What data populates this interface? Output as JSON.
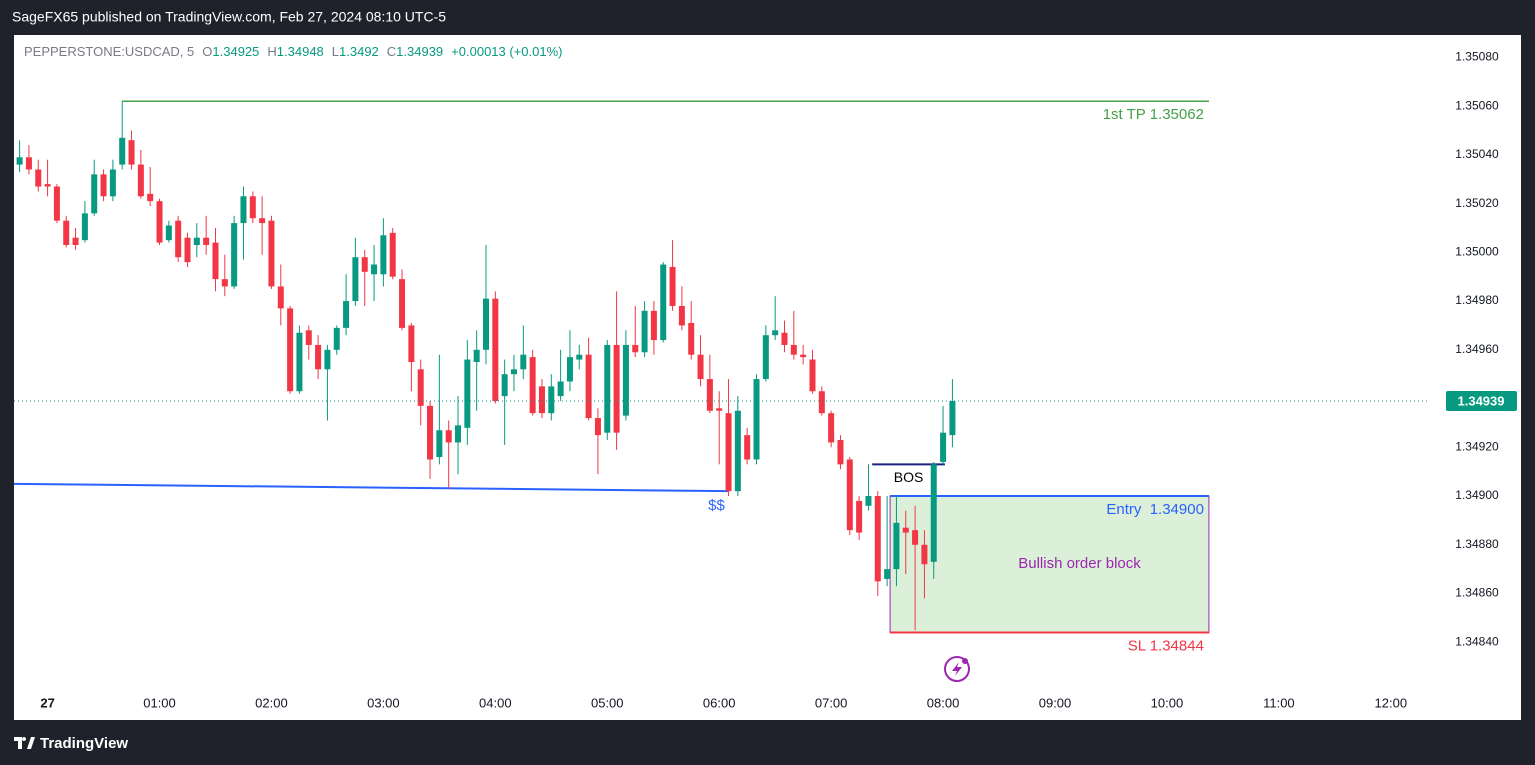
{
  "header": "SageFX65 published on TradingView.com, Feb 27, 2024 08:10 UTC-5",
  "footer": "TradingView",
  "chart_data": {
    "type": "candlestick",
    "symbol": "PEPPERSTONE:USDCAD, 5",
    "ohlc_labels": [
      "O",
      "H",
      "L",
      "C"
    ],
    "change": "+0.00013 (+0.01%)",
    "up_color": "#089981",
    "down_color": "#f23645",
    "grid": false,
    "xlim": [
      -18,
      741
    ],
    "ylim": [
      1.3482,
      1.3509
    ],
    "xticks": [
      {
        "value": 0,
        "label": "27"
      },
      {
        "value": 60,
        "label": "01:00"
      },
      {
        "value": 120,
        "label": "02:00"
      },
      {
        "value": 180,
        "label": "03:00"
      },
      {
        "value": 240,
        "label": "04:00"
      },
      {
        "value": 300,
        "label": "05:00"
      },
      {
        "value": 360,
        "label": "06:00"
      },
      {
        "value": 420,
        "label": "07:00"
      },
      {
        "value": 480,
        "label": "08:00"
      },
      {
        "value": 540,
        "label": "09:00"
      },
      {
        "value": 600,
        "label": "10:00"
      },
      {
        "value": 660,
        "label": "11:00"
      },
      {
        "value": 720,
        "label": "12:00"
      }
    ],
    "yticks": [
      {
        "value": 1.3508,
        "label": "1.35080"
      },
      {
        "value": 1.3506,
        "label": "1.35060"
      },
      {
        "value": 1.3504,
        "label": "1.35040"
      },
      {
        "value": 1.3502,
        "label": "1.35020"
      },
      {
        "value": 1.35,
        "label": "1.35000"
      },
      {
        "value": 1.3498,
        "label": "1.34980"
      },
      {
        "value": 1.3496,
        "label": "1.34960"
      },
      {
        "value": 1.3494,
        "label": "1.34940"
      },
      {
        "value": 1.3492,
        "label": "1.34920"
      },
      {
        "value": 1.349,
        "label": "1.34900"
      },
      {
        "value": 1.3488,
        "label": "1.34880"
      },
      {
        "value": 1.3486,
        "label": "1.34860"
      },
      {
        "value": 1.3484,
        "label": "1.34840"
      }
    ],
    "x": [
      -15,
      -10,
      -5,
      0,
      5,
      10,
      15,
      20,
      25,
      30,
      35,
      40,
      45,
      50,
      55,
      60,
      65,
      70,
      75,
      80,
      85,
      90,
      95,
      100,
      105,
      110,
      115,
      120,
      125,
      130,
      135,
      140,
      145,
      150,
      155,
      160,
      165,
      170,
      175,
      180,
      185,
      190,
      195,
      200,
      205,
      210,
      215,
      220,
      225,
      230,
      235,
      240,
      245,
      250,
      255,
      260,
      265,
      270,
      275,
      280,
      285,
      290,
      295,
      300,
      305,
      310,
      315,
      320,
      325,
      330,
      335,
      340,
      345,
      350,
      355,
      360,
      365,
      370,
      375,
      380,
      385,
      390,
      395,
      400,
      405,
      410,
      415,
      420,
      425,
      430,
      435,
      440,
      445,
      450,
      455,
      460,
      465,
      470,
      475,
      480,
      485
    ],
    "ohlc": [
      [
        1.35036,
        1.35046,
        1.35033,
        1.35039
      ],
      [
        1.35039,
        1.35044,
        1.35032,
        1.35034
      ],
      [
        1.35034,
        1.35038,
        1.35025,
        1.35027
      ],
      [
        1.35028,
        1.35038,
        1.35023,
        1.35027
      ],
      [
        1.35027,
        1.35028,
        1.35012,
        1.35013
      ],
      [
        1.35013,
        1.35015,
        1.35002,
        1.35003
      ],
      [
        1.35006,
        1.3501,
        1.35001,
        1.35003
      ],
      [
        1.35005,
        1.35021,
        1.35004,
        1.35016
      ],
      [
        1.35016,
        1.35038,
        1.35015,
        1.35032
      ],
      [
        1.35032,
        1.35034,
        1.35021,
        1.35023
      ],
      [
        1.35023,
        1.35038,
        1.35021,
        1.35034
      ],
      [
        1.35036,
        1.35062,
        1.35034,
        1.35047
      ],
      [
        1.35046,
        1.3505,
        1.35034,
        1.35036
      ],
      [
        1.35036,
        1.35042,
        1.35022,
        1.35023
      ],
      [
        1.35024,
        1.35035,
        1.35019,
        1.35021
      ],
      [
        1.35021,
        1.35022,
        1.35003,
        1.35004
      ],
      [
        1.35005,
        1.35013,
        1.35004,
        1.35011
      ],
      [
        1.35013,
        1.35015,
        1.34996,
        1.34998
      ],
      [
        1.35006,
        1.35008,
        1.34994,
        1.34996
      ],
      [
        1.35003,
        1.35012,
        1.34998,
        1.35006
      ],
      [
        1.35006,
        1.35015,
        1.34999,
        1.35003
      ],
      [
        1.35004,
        1.3501,
        1.34984,
        1.34989
      ],
      [
        1.34989,
        1.34999,
        1.34982,
        1.34986
      ],
      [
        1.34986,
        1.35015,
        1.34985,
        1.35012
      ],
      [
        1.35012,
        1.35027,
        1.34997,
        1.35023
      ],
      [
        1.35023,
        1.35025,
        1.35012,
        1.35014
      ],
      [
        1.35014,
        1.35023,
        1.34999,
        1.35012
      ],
      [
        1.35013,
        1.35015,
        1.34985,
        1.34986
      ],
      [
        1.34986,
        1.34995,
        1.3497,
        1.34977
      ],
      [
        1.34977,
        1.34978,
        1.34942,
        1.34943
      ],
      [
        1.34943,
        1.3497,
        1.34942,
        1.34967
      ],
      [
        1.34968,
        1.3497,
        1.34956,
        1.34962
      ],
      [
        1.34962,
        1.34966,
        1.34948,
        1.34952
      ],
      [
        1.34952,
        1.34962,
        1.34931,
        1.3496
      ],
      [
        1.3496,
        1.3497,
        1.34958,
        1.34969
      ],
      [
        1.34969,
        1.34991,
        1.34966,
        1.3498
      ],
      [
        1.3498,
        1.35006,
        1.34978,
        1.34998
      ],
      [
        1.34998,
        1.35001,
        1.34978,
        1.34992
      ],
      [
        1.34991,
        1.35003,
        1.3498,
        1.34995
      ],
      [
        1.34991,
        1.35014,
        1.34986,
        1.35007
      ],
      [
        1.35008,
        1.3501,
        1.34989,
        1.3499
      ],
      [
        1.34989,
        1.34993,
        1.34968,
        1.34969
      ],
      [
        1.3497,
        1.34971,
        1.34943,
        1.34955
      ],
      [
        1.34952,
        1.34956,
        1.34929,
        1.34937
      ],
      [
        1.34937,
        1.34939,
        1.34907,
        1.34915
      ],
      [
        1.34916,
        1.34958,
        1.34913,
        1.34927
      ],
      [
        1.34927,
        1.34931,
        1.34903,
        1.34922
      ],
      [
        1.34922,
        1.34941,
        1.34909,
        1.34929
      ],
      [
        1.34928,
        1.34964,
        1.34921,
        1.34956
      ],
      [
        1.34955,
        1.34968,
        1.34935,
        1.3496
      ],
      [
        1.3496,
        1.35003,
        1.34954,
        1.34981
      ],
      [
        1.34981,
        1.34984,
        1.34938,
        1.34939
      ],
      [
        1.34941,
        1.34956,
        1.34921,
        1.3495
      ],
      [
        1.3495,
        1.34958,
        1.34943,
        1.34952
      ],
      [
        1.34952,
        1.3497,
        1.34948,
        1.34958
      ],
      [
        1.34957,
        1.3496,
        1.34933,
        1.34934
      ],
      [
        1.34945,
        1.34948,
        1.34932,
        1.34934
      ],
      [
        1.34934,
        1.3495,
        1.34931,
        1.34945
      ],
      [
        1.34941,
        1.3496,
        1.34939,
        1.34947
      ],
      [
        1.34947,
        1.34968,
        1.34943,
        1.34957
      ],
      [
        1.34956,
        1.34962,
        1.34952,
        1.34958
      ],
      [
        1.34958,
        1.34965,
        1.34931,
        1.34932
      ],
      [
        1.34932,
        1.34936,
        1.34909,
        1.34925
      ],
      [
        1.34926,
        1.34964,
        1.34923,
        1.34962
      ],
      [
        1.34962,
        1.34984,
        1.34919,
        1.34926
      ],
      [
        1.34933,
        1.34968,
        1.34931,
        1.34962
      ],
      [
        1.34962,
        1.34978,
        1.34957,
        1.34959
      ],
      [
        1.34959,
        1.3498,
        1.34957,
        1.34976
      ],
      [
        1.34976,
        1.3498,
        1.34958,
        1.34964
      ],
      [
        1.34964,
        1.34996,
        1.34963,
        1.34995
      ],
      [
        1.34994,
        1.35005,
        1.34976,
        1.34978
      ],
      [
        1.34978,
        1.34986,
        1.34968,
        1.3497
      ],
      [
        1.34971,
        1.3498,
        1.34956,
        1.34958
      ],
      [
        1.34958,
        1.34966,
        1.34945,
        1.34948
      ],
      [
        1.34948,
        1.34958,
        1.34934,
        1.34935
      ],
      [
        1.34936,
        1.34943,
        1.34913,
        1.34935
      ],
      [
        1.34934,
        1.34948,
        1.349,
        1.34902
      ],
      [
        1.34902,
        1.34941,
        1.349,
        1.34935
      ],
      [
        1.34925,
        1.34928,
        1.34913,
        1.34915
      ],
      [
        1.34915,
        1.3495,
        1.34913,
        1.34948
      ],
      [
        1.34948,
        1.3497,
        1.34947,
        1.34966
      ],
      [
        1.34966,
        1.34982,
        1.34964,
        1.34968
      ],
      [
        1.34967,
        1.34972,
        1.34959,
        1.34962
      ],
      [
        1.34962,
        1.34976,
        1.34956,
        1.34958
      ],
      [
        1.34958,
        1.34962,
        1.34954,
        1.34957
      ],
      [
        1.34956,
        1.3496,
        1.34942,
        1.34943
      ],
      [
        1.34943,
        1.34945,
        1.34933,
        1.34934
      ],
      [
        1.34934,
        1.34935,
        1.3492,
        1.34922
      ],
      [
        1.34923,
        1.34925,
        1.34911,
        1.34913
      ],
      [
        1.34915,
        1.34916,
        1.34884,
        1.34886
      ],
      [
        1.34898,
        1.349,
        1.34882,
        1.34885
      ],
      [
        1.34896,
        1.34913,
        1.34894,
        1.349
      ],
      [
        1.349,
        1.34902,
        1.34859,
        1.34865
      ],
      [
        1.34866,
        1.349,
        1.34863,
        1.3487
      ],
      [
        1.3487,
        1.349,
        1.34863,
        1.34889
      ],
      [
        1.34887,
        1.34894,
        1.34868,
        1.34885
      ],
      [
        1.34886,
        1.34896,
        1.34845,
        1.3488
      ],
      [
        1.3488,
        1.34886,
        1.34858,
        1.34872
      ],
      [
        1.34873,
        1.34914,
        1.34866,
        1.34913
      ],
      [
        1.34914,
        1.34937,
        1.34913,
        1.34926
      ],
      [
        1.34925,
        1.34948,
        1.3492,
        1.34939
      ]
    ],
    "annotations": {
      "take_profit": {
        "text": "1st TP 1.35062",
        "value": 1.35062,
        "x": [
          40,
          622.5
        ],
        "color": "#43a047"
      },
      "order_block": {
        "text": "Bullish order block",
        "entry_text": "Entry  1.34900",
        "entry": 1.349,
        "sl_text": "SL 1.34844",
        "sl": 1.34844,
        "x": [
          451.6,
          622.5
        ],
        "fill": "#dcefd9",
        "entry_color": "#2962ff",
        "sl_color": "#f23645",
        "text_color": "#9c27b0"
      },
      "bos": {
        "text": "BOS",
        "value": 1.34913,
        "x": [
          442,
          481
        ],
        "color": "#1a237e"
      },
      "liquidity": {
        "text": "$$",
        "values": [
          1.34905,
          1.34902
        ],
        "x": [
          -18,
          365
        ],
        "color": "#2962ff"
      }
    }
  }
}
